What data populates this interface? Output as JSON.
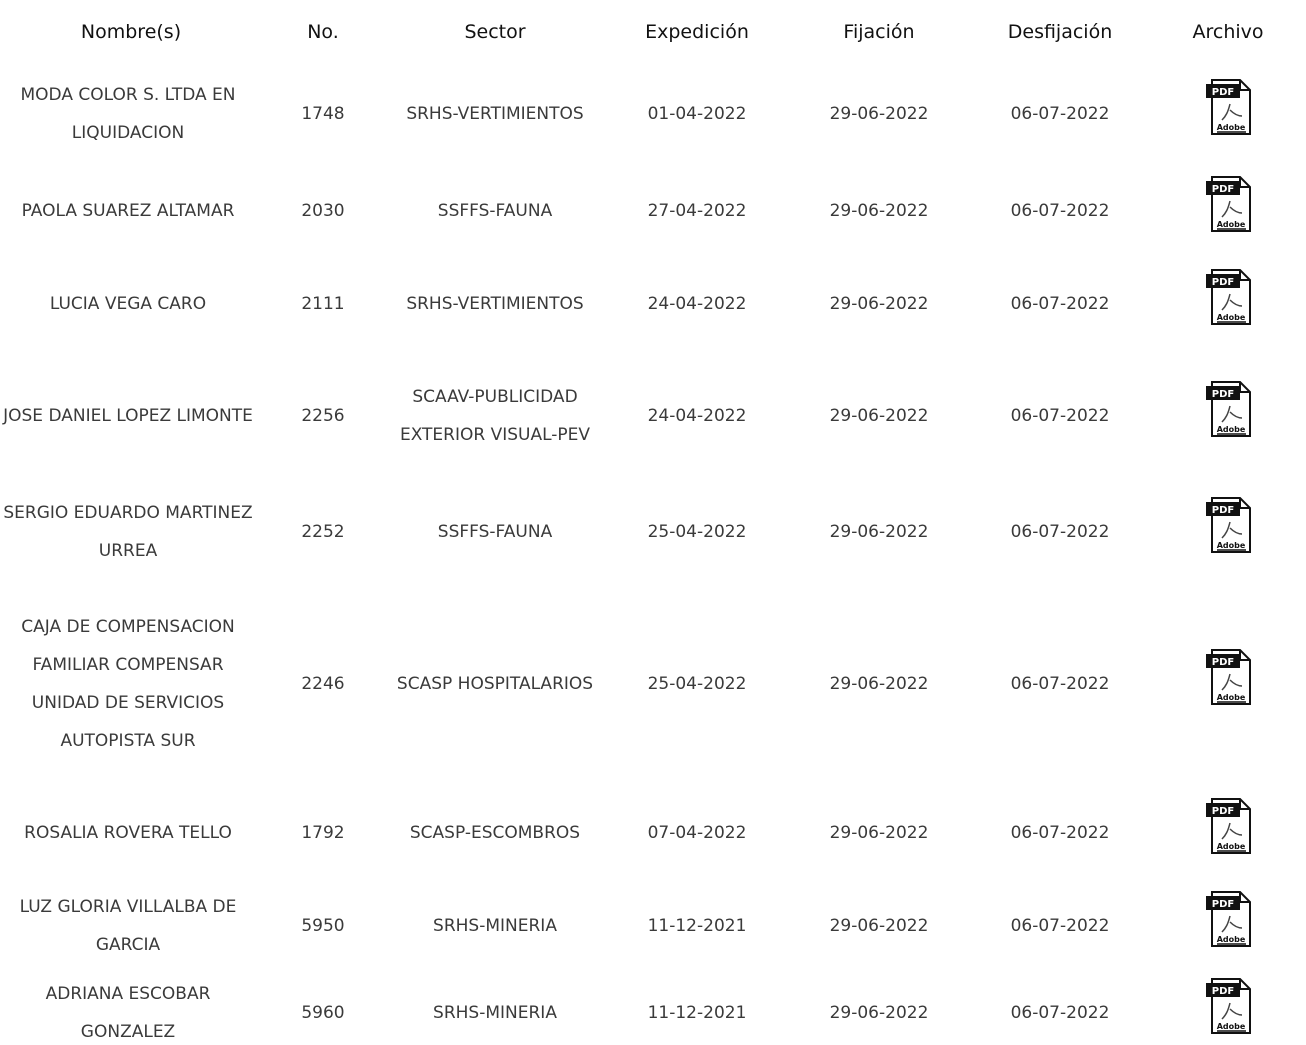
{
  "table": {
    "headers": [
      "Nombre(s)",
      "No.",
      "Sector",
      "Expedición",
      "Fijación",
      "Desfijación",
      "Archivo"
    ],
    "rows": [
      {
        "name": "MODA COLOR S. LTDA EN LIQUIDACION",
        "no": "1748",
        "sector": "SRHS-VERTIMIENTOS",
        "expedicion": "01-04-2022",
        "fijacion": "29-06-2022",
        "desfijacion": "06-07-2022"
      },
      {
        "name": "PAOLA SUAREZ ALTAMAR",
        "no": "2030",
        "sector": "SSFFS-FAUNA",
        "expedicion": "27-04-2022",
        "fijacion": "29-06-2022",
        "desfijacion": "06-07-2022"
      },
      {
        "name": "LUCIA VEGA CARO",
        "no": "2111",
        "sector": "SRHS-VERTIMIENTOS",
        "expedicion": "24-04-2022",
        "fijacion": "29-06-2022",
        "desfijacion": "06-07-2022"
      },
      {
        "name": "JOSE DANIEL LOPEZ LIMONTE",
        "no": "2256",
        "sector": "SCAAV-PUBLICIDAD EXTERIOR VISUAL-PEV",
        "expedicion": "24-04-2022",
        "fijacion": "29-06-2022",
        "desfijacion": "06-07-2022"
      },
      {
        "name": "SERGIO EDUARDO MARTINEZ URREA",
        "no": "2252",
        "sector": "SSFFS-FAUNA",
        "expedicion": "25-04-2022",
        "fijacion": "29-06-2022",
        "desfijacion": "06-07-2022"
      },
      {
        "name": "CAJA DE COMPENSACION FAMILIAR COMPENSAR UNIDAD DE SERVICIOS AUTOPISTA SUR",
        "no": "2246",
        "sector": "SCASP HOSPITALARIOS",
        "expedicion": "25-04-2022",
        "fijacion": "29-06-2022",
        "desfijacion": "06-07-2022"
      },
      {
        "name": "ROSALIA ROVERA TELLO",
        "no": "1792",
        "sector": "SCASP-ESCOMBROS",
        "expedicion": "07-04-2022",
        "fijacion": "29-06-2022",
        "desfijacion": "06-07-2022"
      },
      {
        "name": "LUZ GLORIA VILLALBA DE GARCIA",
        "no": "5950",
        "sector": "SRHS-MINERIA",
        "expedicion": "11-12-2021",
        "fijacion": "29-06-2022",
        "desfijacion": "06-07-2022"
      },
      {
        "name": "ADRIANA ESCOBAR GONZALEZ",
        "no": "5960",
        "sector": "SRHS-MINERIA",
        "expedicion": "11-12-2021",
        "fijacion": "29-06-2022",
        "desfijacion": "06-07-2022"
      }
    ],
    "pdf_icon_label": "PDF",
    "pdf_icon_brand": "Adobe"
  },
  "colors": {
    "header_text": "#111111",
    "cell_text": "#3a3a3a",
    "pdf_red": "#111111",
    "background": "#ffffff"
  }
}
